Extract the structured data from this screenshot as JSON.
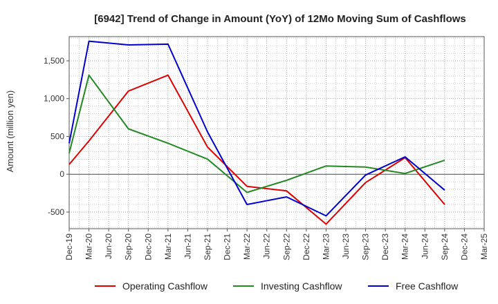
{
  "chart_data": {
    "type": "line",
    "title": "[6942]  Trend of Change in Amount (YoY) of 12Mo Moving Sum of Cashflows",
    "xlabel": "",
    "ylabel": "Amount (million yen)",
    "ylim": [
      -720,
      1820
    ],
    "yticks": [
      -500,
      0,
      500,
      1000,
      1500
    ],
    "ytick_labels": [
      "-500",
      "0",
      "500",
      "1,000",
      "1,500"
    ],
    "categories": [
      "Dec-19",
      "Mar-20",
      "Jun-20",
      "Sep-20",
      "Dec-20",
      "Mar-21",
      "Jun-21",
      "Sep-21",
      "Dec-21",
      "Mar-22",
      "Jun-22",
      "Sep-22",
      "Dec-22",
      "Mar-23",
      "Jun-23",
      "Sep-23",
      "Dec-23",
      "Mar-24",
      "Jun-24",
      "Sep-24",
      "Dec-24",
      "Mar-25"
    ],
    "grid": true,
    "legend_position": "bottom",
    "series": [
      {
        "name": "Operating Cashflow",
        "color": "#dd0000",
        "values": [
          130,
          440,
          null,
          1100,
          null,
          1310,
          null,
          360,
          null,
          -160,
          null,
          -220,
          null,
          -660,
          null,
          -110,
          null,
          220,
          null,
          -400,
          null,
          null
        ]
      },
      {
        "name": "Investing Cashflow",
        "color": "#228822",
        "values": [
          280,
          1310,
          null,
          600,
          null,
          410,
          null,
          200,
          null,
          -240,
          null,
          -80,
          null,
          110,
          null,
          95,
          null,
          10,
          null,
          185,
          null,
          null
        ]
      },
      {
        "name": "Free Cashflow",
        "color": "#0000cc",
        "values": [
          410,
          1760,
          null,
          1710,
          null,
          1720,
          null,
          560,
          null,
          -400,
          null,
          -300,
          null,
          -550,
          null,
          -10,
          null,
          230,
          null,
          -210,
          null,
          null
        ]
      }
    ]
  }
}
